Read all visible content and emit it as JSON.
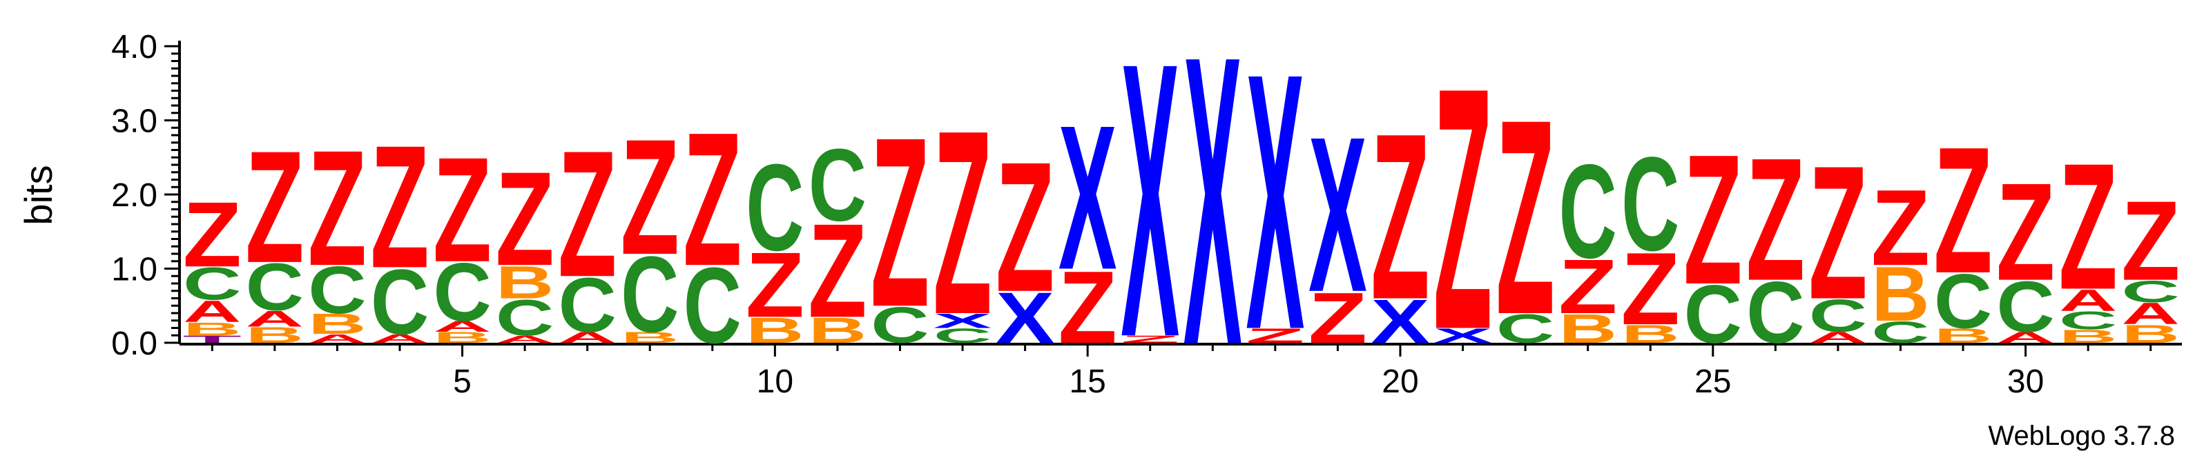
{
  "chart_data": {
    "type": "sequence-logo",
    "ylabel": "bits",
    "ylim": [
      0,
      4.0
    ],
    "yticks": [
      "0.0",
      "1.0",
      "2.0",
      "3.0",
      "4.0"
    ],
    "xticks": [
      5,
      10,
      15,
      20,
      25,
      30
    ],
    "credit": "WebLogo 3.7.8",
    "colors": {
      "Z": "#ff0000",
      "C": "#228b22",
      "B": "#ff8c00",
      "A": "#ff0000",
      "X": "#0000ff",
      "T": "#800080",
      "Q": "#ff0000"
    },
    "positions": [
      {
        "pos": 1,
        "letters": [
          {
            "c": "T",
            "h": 0.1
          },
          {
            "c": "B",
            "h": 0.18
          },
          {
            "c": "A",
            "h": 0.3
          },
          {
            "c": "C",
            "h": 0.45
          },
          {
            "c": "Z",
            "h": 0.9
          }
        ]
      },
      {
        "pos": 2,
        "letters": [
          {
            "c": "B",
            "h": 0.22
          },
          {
            "c": "A",
            "h": 0.22
          },
          {
            "c": "C",
            "h": 0.65
          },
          {
            "c": "Z",
            "h": 1.55
          }
        ]
      },
      {
        "pos": 3,
        "letters": [
          {
            "c": "A",
            "h": 0.12
          },
          {
            "c": "B",
            "h": 0.28
          },
          {
            "c": "C",
            "h": 0.65
          },
          {
            "c": "Z",
            "h": 1.6
          }
        ]
      },
      {
        "pos": 4,
        "letters": [
          {
            "c": "A",
            "h": 0.12
          },
          {
            "c": "C",
            "h": 0.9
          },
          {
            "c": "Z",
            "h": 1.7
          }
        ]
      },
      {
        "pos": 5,
        "letters": [
          {
            "c": "B",
            "h": 0.15
          },
          {
            "c": "A",
            "h": 0.15
          },
          {
            "c": "C",
            "h": 0.8
          },
          {
            "c": "Z",
            "h": 1.45
          }
        ]
      },
      {
        "pos": 6,
        "letters": [
          {
            "c": "A",
            "h": 0.1
          },
          {
            "c": "C",
            "h": 0.5
          },
          {
            "c": "B",
            "h": 0.45
          },
          {
            "c": "Z",
            "h": 1.3
          }
        ]
      },
      {
        "pos": 7,
        "letters": [
          {
            "c": "A",
            "h": 0.15
          },
          {
            "c": "C",
            "h": 0.75
          },
          {
            "c": "Z",
            "h": 1.75
          }
        ]
      },
      {
        "pos": 8,
        "letters": [
          {
            "c": "B",
            "h": 0.15
          },
          {
            "c": "C",
            "h": 1.05
          },
          {
            "c": "Z",
            "h": 1.6
          }
        ]
      },
      {
        "pos": 9,
        "letters": [
          {
            "c": "C",
            "h": 1.05
          },
          {
            "c": "Z",
            "h": 1.85
          }
        ]
      },
      {
        "pos": 10,
        "letters": [
          {
            "c": "B",
            "h": 0.35
          },
          {
            "c": "Z",
            "h": 0.9
          },
          {
            "c": "C",
            "h": 1.2
          }
        ]
      },
      {
        "pos": 11,
        "letters": [
          {
            "c": "B",
            "h": 0.35
          },
          {
            "c": "Z",
            "h": 1.3
          },
          {
            "c": "C",
            "h": 1.0
          }
        ]
      },
      {
        "pos": 12,
        "letters": [
          {
            "c": "C",
            "h": 0.5
          },
          {
            "c": "Z",
            "h": 2.35
          }
        ]
      },
      {
        "pos": 13,
        "letters": [
          {
            "c": "C",
            "h": 0.2
          },
          {
            "c": "X",
            "h": 0.2
          },
          {
            "c": "Z",
            "h": 2.55
          }
        ]
      },
      {
        "pos": 14,
        "letters": [
          {
            "c": "X",
            "h": 0.7
          },
          {
            "c": "Z",
            "h": 1.8
          }
        ]
      },
      {
        "pos": 15,
        "letters": [
          {
            "c": "Z",
            "h": 1.0
          },
          {
            "c": "X",
            "h": 2.0
          }
        ]
      },
      {
        "pos": 16,
        "letters": [
          {
            "c": "Z",
            "h": 0.1
          },
          {
            "c": "X",
            "h": 3.8
          }
        ]
      },
      {
        "pos": 17,
        "letters": [
          {
            "c": "X",
            "h": 4.0
          }
        ]
      },
      {
        "pos": 18,
        "letters": [
          {
            "c": "Z",
            "h": 0.2
          },
          {
            "c": "X",
            "h": 3.55
          }
        ]
      },
      {
        "pos": 19,
        "letters": [
          {
            "c": "Z",
            "h": 0.7
          },
          {
            "c": "X",
            "h": 2.15
          }
        ]
      },
      {
        "pos": 20,
        "letters": [
          {
            "c": "X",
            "h": 0.6
          },
          {
            "c": "Z",
            "h": 2.3
          }
        ]
      },
      {
        "pos": 21,
        "letters": [
          {
            "c": "X",
            "h": 0.2
          },
          {
            "c": "Z",
            "h": 3.35
          }
        ]
      },
      {
        "pos": 22,
        "letters": [
          {
            "c": "C",
            "h": 0.4
          },
          {
            "c": "Z",
            "h": 2.7
          }
        ]
      },
      {
        "pos": 23,
        "letters": [
          {
            "c": "B",
            "h": 0.4
          },
          {
            "c": "Z",
            "h": 0.75
          },
          {
            "c": "C",
            "h": 1.3
          }
        ]
      },
      {
        "pos": 24,
        "letters": [
          {
            "c": "B",
            "h": 0.25
          },
          {
            "c": "Z",
            "h": 1.0
          },
          {
            "c": "C",
            "h": 1.3
          }
        ]
      },
      {
        "pos": 25,
        "letters": [
          {
            "c": "C",
            "h": 0.8
          },
          {
            "c": "Z",
            "h": 1.8
          }
        ]
      },
      {
        "pos": 26,
        "letters": [
          {
            "c": "C",
            "h": 0.85
          },
          {
            "c": "Z",
            "h": 1.7
          }
        ]
      },
      {
        "pos": 27,
        "letters": [
          {
            "c": "A",
            "h": 0.15
          },
          {
            "c": "C",
            "h": 0.45
          },
          {
            "c": "Z",
            "h": 1.85
          }
        ]
      },
      {
        "pos": 28,
        "letters": [
          {
            "c": "C",
            "h": 0.3
          },
          {
            "c": "B",
            "h": 0.75
          },
          {
            "c": "Z",
            "h": 1.05
          }
        ]
      },
      {
        "pos": 29,
        "letters": [
          {
            "c": "B",
            "h": 0.2
          },
          {
            "c": "C",
            "h": 0.75
          },
          {
            "c": "Z",
            "h": 1.75
          }
        ]
      },
      {
        "pos": 30,
        "letters": [
          {
            "c": "A",
            "h": 0.15
          },
          {
            "c": "C",
            "h": 0.7
          },
          {
            "c": "Z",
            "h": 1.35
          }
        ]
      },
      {
        "pos": 31,
        "letters": [
          {
            "c": "B",
            "h": 0.18
          },
          {
            "c": "C",
            "h": 0.25
          },
          {
            "c": "A",
            "h": 0.3
          },
          {
            "c": "Z",
            "h": 1.75
          }
        ]
      },
      {
        "pos": 32,
        "letters": [
          {
            "c": "B",
            "h": 0.25
          },
          {
            "c": "A",
            "h": 0.3
          },
          {
            "c": "C",
            "h": 0.3
          },
          {
            "c": "Z",
            "h": 1.1
          }
        ]
      }
    ]
  }
}
